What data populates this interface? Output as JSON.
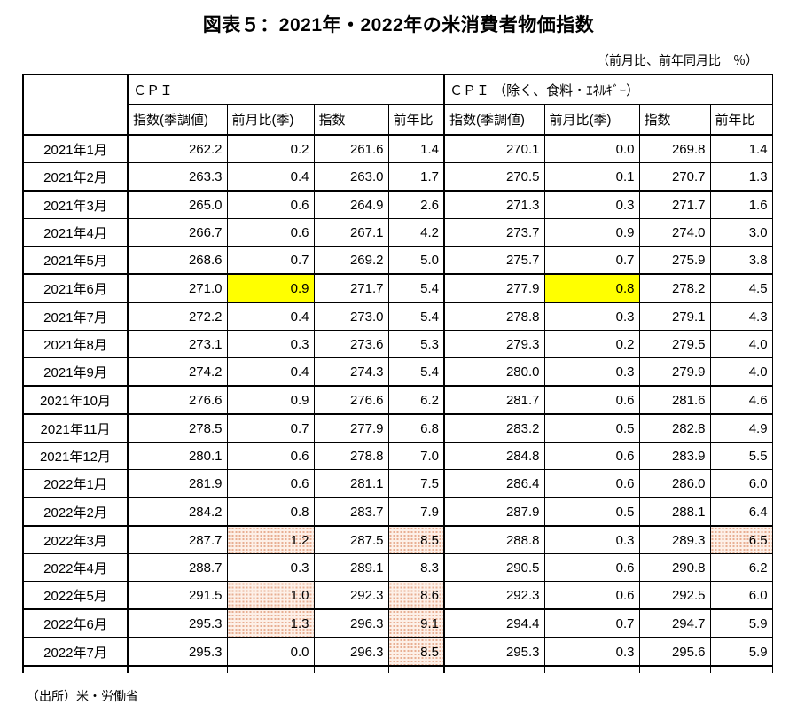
{
  "title": "図表５：2021年・2022年の米消費者物価指数",
  "subtitle": "（前月比、前年同月比　％）",
  "source": "（出所）米・労働省",
  "colors": {
    "highlight_yellow": "#ffff00",
    "highlight_pink_dot": "#e8ae92",
    "border": "#000000"
  },
  "table": {
    "group_headers": [
      "ＣＰＩ",
      "ＣＰＩ （除く、食料・ｴﾈﾙｷﾞｰ）"
    ],
    "sub_headers": [
      "指数(季調値)",
      "前月比(季)",
      "指数",
      "前年比",
      "指数(季調値)",
      "前月比(季)",
      "指数",
      "前年比"
    ],
    "rows": [
      {
        "month": "2021年1月",
        "values": [
          "262.2",
          "0.2",
          "261.6",
          "1.4",
          "270.1",
          "0.0",
          "269.8",
          "1.4"
        ],
        "hl": [
          "",
          "",
          "",
          "",
          "",
          "",
          "",
          ""
        ],
        "thick_top": false
      },
      {
        "month": "2021年2月",
        "values": [
          "263.3",
          "0.4",
          "263.0",
          "1.7",
          "270.5",
          "0.1",
          "270.7",
          "1.3"
        ],
        "hl": [
          "",
          "",
          "",
          "",
          "",
          "",
          "",
          ""
        ],
        "thick_top": false
      },
      {
        "month": "2021年3月",
        "values": [
          "265.0",
          "0.6",
          "264.9",
          "2.6",
          "271.3",
          "0.3",
          "271.7",
          "1.6"
        ],
        "hl": [
          "",
          "",
          "",
          "",
          "",
          "",
          "",
          ""
        ],
        "thick_top": true
      },
      {
        "month": "2021年4月",
        "values": [
          "266.7",
          "0.6",
          "267.1",
          "4.2",
          "273.7",
          "0.9",
          "274.0",
          "3.0"
        ],
        "hl": [
          "",
          "",
          "",
          "",
          "",
          "",
          "",
          ""
        ],
        "thick_top": false
      },
      {
        "month": "2021年5月",
        "values": [
          "268.6",
          "0.7",
          "269.2",
          "5.0",
          "275.7",
          "0.7",
          "275.9",
          "3.8"
        ],
        "hl": [
          "",
          "",
          "",
          "",
          "",
          "",
          "",
          ""
        ],
        "thick_top": false
      },
      {
        "month": "2021年6月",
        "values": [
          "271.0",
          "0.9",
          "271.7",
          "5.4",
          "277.9",
          "0.8",
          "278.2",
          "4.5"
        ],
        "hl": [
          "",
          "yellow",
          "",
          "",
          "",
          "yellow",
          "",
          ""
        ],
        "thick_top": true
      },
      {
        "month": "2021年7月",
        "values": [
          "272.2",
          "0.4",
          "273.0",
          "5.4",
          "278.8",
          "0.3",
          "279.1",
          "4.3"
        ],
        "hl": [
          "",
          "",
          "",
          "",
          "",
          "",
          "",
          ""
        ],
        "thick_top": true
      },
      {
        "month": "2021年8月",
        "values": [
          "273.1",
          "0.3",
          "273.6",
          "5.3",
          "279.3",
          "0.2",
          "279.5",
          "4.0"
        ],
        "hl": [
          "",
          "",
          "",
          "",
          "",
          "",
          "",
          ""
        ],
        "thick_top": false
      },
      {
        "month": "2021年9月",
        "values": [
          "274.2",
          "0.4",
          "274.3",
          "5.4",
          "280.0",
          "0.3",
          "279.9",
          "4.0"
        ],
        "hl": [
          "",
          "",
          "",
          "",
          "",
          "",
          "",
          ""
        ],
        "thick_top": false
      },
      {
        "month": "2021年10月",
        "values": [
          "276.6",
          "0.9",
          "276.6",
          "6.2",
          "281.7",
          "0.6",
          "281.6",
          "4.6"
        ],
        "hl": [
          "",
          "",
          "",
          "",
          "",
          "",
          "",
          ""
        ],
        "thick_top": true
      },
      {
        "month": "2021年11月",
        "values": [
          "278.5",
          "0.7",
          "277.9",
          "6.8",
          "283.2",
          "0.5",
          "282.8",
          "4.9"
        ],
        "hl": [
          "",
          "",
          "",
          "",
          "",
          "",
          "",
          ""
        ],
        "thick_top": true
      },
      {
        "month": "2021年12月",
        "values": [
          "280.1",
          "0.6",
          "278.8",
          "7.0",
          "284.8",
          "0.6",
          "283.9",
          "5.5"
        ],
        "hl": [
          "",
          "",
          "",
          "",
          "",
          "",
          "",
          ""
        ],
        "thick_top": false
      },
      {
        "month": "2022年1月",
        "values": [
          "281.9",
          "0.6",
          "281.1",
          "7.5",
          "286.4",
          "0.6",
          "286.0",
          "6.0"
        ],
        "hl": [
          "",
          "",
          "",
          "",
          "",
          "",
          "",
          ""
        ],
        "thick_top": false
      },
      {
        "month": "2022年2月",
        "values": [
          "284.2",
          "0.8",
          "283.7",
          "7.9",
          "287.9",
          "0.5",
          "288.1",
          "6.4"
        ],
        "hl": [
          "",
          "",
          "",
          "",
          "",
          "",
          "",
          ""
        ],
        "thick_top": true
      },
      {
        "month": "2022年3月",
        "values": [
          "287.7",
          "1.2",
          "287.5",
          "8.5",
          "288.8",
          "0.3",
          "289.3",
          "6.5"
        ],
        "hl": [
          "",
          "pink",
          "",
          "pink",
          "",
          "",
          "",
          "pink"
        ],
        "thick_top": true
      },
      {
        "month": "2022年4月",
        "values": [
          "288.7",
          "0.3",
          "289.1",
          "8.3",
          "290.5",
          "0.6",
          "290.8",
          "6.2"
        ],
        "hl": [
          "",
          "",
          "",
          "",
          "",
          "",
          "",
          ""
        ],
        "thick_top": false
      },
      {
        "month": "2022年5月",
        "values": [
          "291.5",
          "1.0",
          "292.3",
          "8.6",
          "292.3",
          "0.6",
          "292.5",
          "6.0"
        ],
        "hl": [
          "",
          "pink",
          "",
          "pink",
          "",
          "",
          "",
          ""
        ],
        "thick_top": false
      },
      {
        "month": "2022年6月",
        "values": [
          "295.3",
          "1.3",
          "296.3",
          "9.1",
          "294.4",
          "0.7",
          "294.7",
          "5.9"
        ],
        "hl": [
          "",
          "pink",
          "",
          "pink",
          "",
          "",
          "",
          ""
        ],
        "thick_top": true
      },
      {
        "month": "2022年7月",
        "values": [
          "295.3",
          "0.0",
          "296.3",
          "8.5",
          "295.3",
          "0.3",
          "295.6",
          "5.9"
        ],
        "hl": [
          "",
          "",
          "",
          "pink",
          "",
          "",
          "",
          ""
        ],
        "thick_top": true
      }
    ]
  }
}
